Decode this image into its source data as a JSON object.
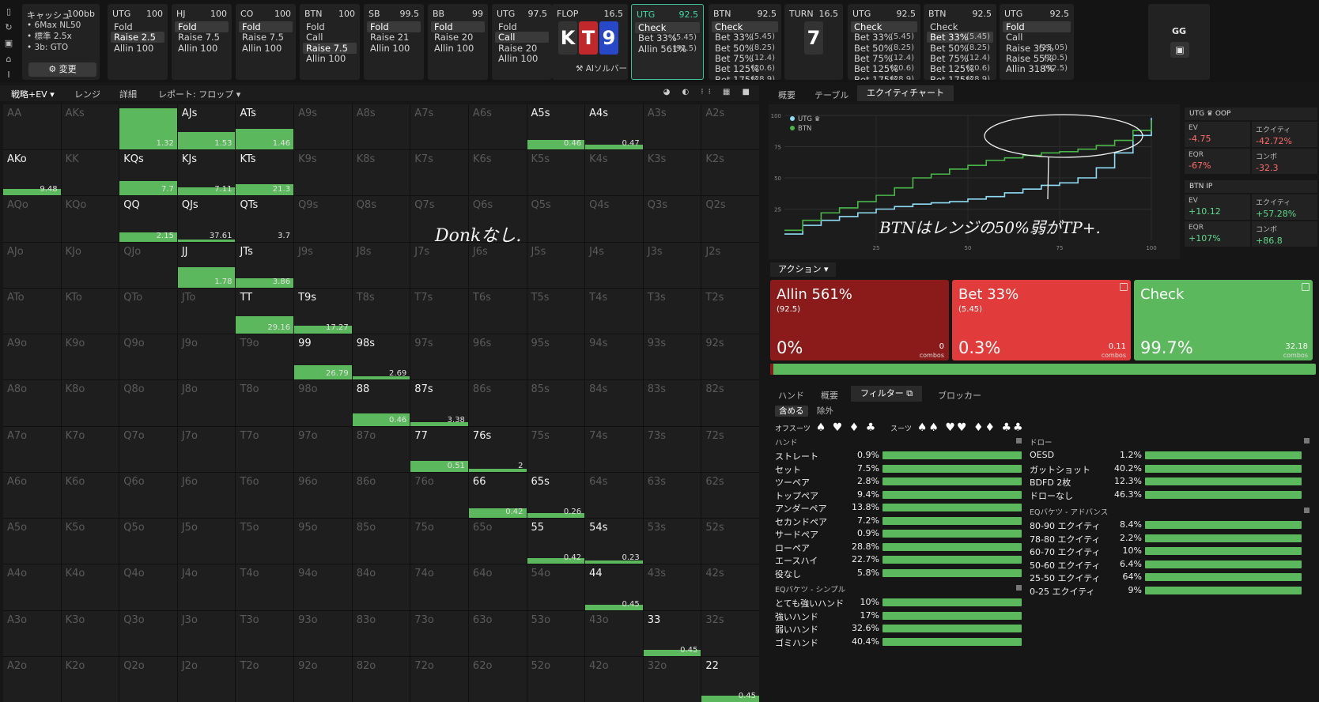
{
  "top": {
    "cash": {
      "title": "キャッシュ",
      "depth": "100bb",
      "lines": [
        "• 6Max NL50",
        "• 標準 2.5x",
        "• 3b: GTO"
      ],
      "change_label": "⚙ 変更"
    },
    "positions": [
      {
        "pos": "UTG",
        "stack": "100",
        "options": [
          {
            "label": "Fold"
          },
          {
            "label": "Raise 2.5",
            "selected": true
          },
          {
            "label": "Allin 100"
          }
        ]
      },
      {
        "pos": "HJ",
        "stack": "100",
        "options": [
          {
            "label": "Fold",
            "selected": true
          },
          {
            "label": "Raise 7.5"
          },
          {
            "label": "Allin 100"
          }
        ]
      },
      {
        "pos": "CO",
        "stack": "100",
        "options": [
          {
            "label": "Fold",
            "selected": true
          },
          {
            "label": "Raise 7.5"
          },
          {
            "label": "Allin 100"
          }
        ]
      },
      {
        "pos": "BTN",
        "stack": "100",
        "options": [
          {
            "label": "Fold"
          },
          {
            "label": "Call"
          },
          {
            "label": "Raise 7.5",
            "selected": true
          },
          {
            "label": "Allin 100"
          }
        ]
      },
      {
        "pos": "SB",
        "stack": "99.5",
        "options": [
          {
            "label": "Fold",
            "selected": true
          },
          {
            "label": "Raise 21"
          },
          {
            "label": "Allin 100"
          }
        ]
      },
      {
        "pos": "BB",
        "stack": "99",
        "options": [
          {
            "label": "Fold",
            "selected": true
          },
          {
            "label": "Raise 20"
          },
          {
            "label": "Allin 100"
          }
        ]
      },
      {
        "pos": "UTG",
        "stack": "97.5",
        "options": [
          {
            "label": "Fold"
          },
          {
            "label": "Call",
            "selected": true
          },
          {
            "label": "Raise 20"
          },
          {
            "label": "Allin 100"
          }
        ]
      }
    ],
    "flop": {
      "label": "FLOP",
      "pot": "16.5",
      "cards": [
        {
          "rank": "K",
          "color": "#333333"
        },
        {
          "rank": "T",
          "color": "#c0282c"
        },
        {
          "rank": "9",
          "color": "#2948c8"
        }
      ],
      "ai_label": "⚒ AIソルバー"
    },
    "utg_flop": {
      "pos": "UTG",
      "stack": "92.5",
      "options": [
        {
          "label": "Check",
          "selected": true
        },
        {
          "label": "Bet 33%",
          "size": "(5.45)"
        },
        {
          "label": "Allin 561%",
          "size": "(92.5)"
        }
      ]
    },
    "btn_flop": {
      "pos": "BTN",
      "stack": "92.5",
      "options": [
        {
          "label": "Check",
          "selected": true
        },
        {
          "label": "Bet 33%",
          "size": "(5.45)"
        },
        {
          "label": "Bet 50%",
          "size": "(8.25)"
        },
        {
          "label": "Bet 75%",
          "size": "(12.4)"
        },
        {
          "label": "Bet 125%",
          "size": "(20.6)"
        },
        {
          "label": "Bet 175%",
          "size": "(28.9)"
        }
      ]
    },
    "turn": {
      "label": "TURN",
      "pot": "16.5",
      "card": "7",
      "card_color": "#333333"
    },
    "utg_turn": {
      "pos": "UTG",
      "stack": "92.5",
      "options": [
        {
          "label": "Check",
          "selected": true
        },
        {
          "label": "Bet 33%",
          "size": "(5.45)"
        },
        {
          "label": "Bet 50%",
          "size": "(8.25)"
        },
        {
          "label": "Bet 75%",
          "size": "(12.4)"
        },
        {
          "label": "Bet 125%",
          "size": "(20.6)"
        },
        {
          "label": "Bet 175%",
          "size": "(28.9)"
        }
      ]
    },
    "btn_turn": {
      "pos": "BTN",
      "stack": "92.5",
      "options": [
        {
          "label": "Check"
        },
        {
          "label": "Bet 33%",
          "size": "(5.45)",
          "selected": true
        },
        {
          "label": "Bet 50%",
          "size": "(8.25)"
        },
        {
          "label": "Bet 75%",
          "size": "(12.4)"
        },
        {
          "label": "Bet 125%",
          "size": "(20.6)"
        },
        {
          "label": "Bet 175%",
          "size": "(28.9)"
        }
      ]
    },
    "utg_river": {
      "pos": "UTG",
      "stack": "92.5",
      "options": [
        {
          "label": "Fold",
          "selected": true
        },
        {
          "label": "Call"
        },
        {
          "label": "Raise 35%",
          "size": "(15.05)"
        },
        {
          "label": "Raise 55%",
          "size": "(20.5)"
        },
        {
          "label": "Allin 318%",
          "size": "(92.5)"
        }
      ]
    },
    "gg": {
      "label": "GG",
      "save_icon": "save-icon"
    }
  },
  "left": {
    "tabs": [
      "戦略+EV ▾",
      "レンジ",
      "詳細",
      "レポート: フロップ ▾"
    ],
    "view_icons": "◕ ◐ ⁝⁝ ▦ ■",
    "grid": [
      [
        {
          "h": "AA"
        },
        {
          "h": "AKs"
        },
        {
          "h": "AQs",
          "v": "1.32",
          "w": 1
        },
        {
          "h": "AJs",
          "v": "1.53",
          "w": 1
        },
        {
          "h": "ATs",
          "v": "1.46",
          "w": 1
        },
        {
          "h": "A9s"
        },
        {
          "h": "A8s"
        },
        {
          "h": "A7s"
        },
        {
          "h": "A6s"
        },
        {
          "h": "A5s",
          "v": "0.46",
          "w": 1
        },
        {
          "h": "A4s",
          "v": "0.47",
          "w": 1
        },
        {
          "h": "A3s"
        },
        {
          "h": "A2s"
        }
      ],
      [
        {
          "h": "AKo",
          "v": "9.48",
          "w": 1
        },
        {
          "h": "KK"
        },
        {
          "h": "KQs",
          "v": "7.7",
          "w": 1
        },
        {
          "h": "KJs",
          "v": "7.11",
          "w": 1
        },
        {
          "h": "KTs",
          "v": "21.3",
          "w": 1
        },
        {
          "h": "K9s"
        },
        {
          "h": "K8s"
        },
        {
          "h": "K7s"
        },
        {
          "h": "K6s"
        },
        {
          "h": "K5s"
        },
        {
          "h": "K4s"
        },
        {
          "h": "K3s"
        },
        {
          "h": "K2s"
        }
      ],
      [
        {
          "h": "AQo"
        },
        {
          "h": "KQo"
        },
        {
          "h": "QQ",
          "v": "2.15",
          "w": 1
        },
        {
          "h": "QJs",
          "v": "37.61",
          "w": 1
        },
        {
          "h": "QTs",
          "v": "3.7",
          "w": 0
        },
        {
          "h": "Q9s"
        },
        {
          "h": "Q8s"
        },
        {
          "h": "Q7s"
        },
        {
          "h": "Q6s"
        },
        {
          "h": "Q5s"
        },
        {
          "h": "Q4s"
        },
        {
          "h": "Q3s"
        },
        {
          "h": "Q2s"
        }
      ],
      [
        {
          "h": "AJo"
        },
        {
          "h": "KJo"
        },
        {
          "h": "QJo"
        },
        {
          "h": "JJ",
          "v": "1.78",
          "w": 1
        },
        {
          "h": "JTs",
          "v": "3.86",
          "w": 1
        },
        {
          "h": "J9s"
        },
        {
          "h": "J8s"
        },
        {
          "h": "J7s"
        },
        {
          "h": "J6s"
        },
        {
          "h": "J5s"
        },
        {
          "h": "J4s"
        },
        {
          "h": "J3s"
        },
        {
          "h": "J2s"
        }
      ],
      [
        {
          "h": "ATo"
        },
        {
          "h": "KTo"
        },
        {
          "h": "QTo"
        },
        {
          "h": "JTo"
        },
        {
          "h": "TT",
          "v": "29.16",
          "w": 1
        },
        {
          "h": "T9s",
          "v": "17.27",
          "w": 1
        },
        {
          "h": "T8s"
        },
        {
          "h": "T7s"
        },
        {
          "h": "T6s"
        },
        {
          "h": "T5s"
        },
        {
          "h": "T4s"
        },
        {
          "h": "T3s"
        },
        {
          "h": "T2s"
        }
      ],
      [
        {
          "h": "A9o"
        },
        {
          "h": "K9o"
        },
        {
          "h": "Q9o"
        },
        {
          "h": "J9o"
        },
        {
          "h": "T9o"
        },
        {
          "h": "99",
          "v": "26.79",
          "w": 1
        },
        {
          "h": "98s",
          "v": "2.69",
          "w": 1
        },
        {
          "h": "97s"
        },
        {
          "h": "96s"
        },
        {
          "h": "95s"
        },
        {
          "h": "94s"
        },
        {
          "h": "93s"
        },
        {
          "h": "92s"
        }
      ],
      [
        {
          "h": "A8o"
        },
        {
          "h": "K8o"
        },
        {
          "h": "Q8o"
        },
        {
          "h": "J8o"
        },
        {
          "h": "T8o"
        },
        {
          "h": "98o"
        },
        {
          "h": "88",
          "v": "0.46",
          "w": 1
        },
        {
          "h": "87s",
          "v": "3.38",
          "w": 1
        },
        {
          "h": "86s"
        },
        {
          "h": "85s"
        },
        {
          "h": "84s"
        },
        {
          "h": "83s"
        },
        {
          "h": "82s"
        }
      ],
      [
        {
          "h": "A7o"
        },
        {
          "h": "K7o"
        },
        {
          "h": "Q7o"
        },
        {
          "h": "J7o"
        },
        {
          "h": "T7o"
        },
        {
          "h": "97o"
        },
        {
          "h": "87o"
        },
        {
          "h": "77",
          "v": "0.51",
          "w": 1
        },
        {
          "h": "76s",
          "v": "2",
          "w": 1
        },
        {
          "h": "75s"
        },
        {
          "h": "74s"
        },
        {
          "h": "73s"
        },
        {
          "h": "72s"
        }
      ],
      [
        {
          "h": "A6o"
        },
        {
          "h": "K6o"
        },
        {
          "h": "Q6o"
        },
        {
          "h": "J6o"
        },
        {
          "h": "T6o"
        },
        {
          "h": "96o"
        },
        {
          "h": "86o"
        },
        {
          "h": "76o"
        },
        {
          "h": "66",
          "v": "0.42",
          "w": 1
        },
        {
          "h": "65s",
          "v": "0.26",
          "w": 1
        },
        {
          "h": "64s"
        },
        {
          "h": "63s"
        },
        {
          "h": "62s"
        }
      ],
      [
        {
          "h": "A5o"
        },
        {
          "h": "K5o"
        },
        {
          "h": "Q5o"
        },
        {
          "h": "J5o"
        },
        {
          "h": "T5o"
        },
        {
          "h": "95o"
        },
        {
          "h": "85o"
        },
        {
          "h": "75o"
        },
        {
          "h": "65o"
        },
        {
          "h": "55",
          "v": "0.42",
          "w": 1
        },
        {
          "h": "54s",
          "v": "0.23",
          "w": 1
        },
        {
          "h": "53s"
        },
        {
          "h": "52s"
        }
      ],
      [
        {
          "h": "A4o"
        },
        {
          "h": "K4o"
        },
        {
          "h": "Q4o"
        },
        {
          "h": "J4o"
        },
        {
          "h": "T4o"
        },
        {
          "h": "94o"
        },
        {
          "h": "84o"
        },
        {
          "h": "74o"
        },
        {
          "h": "64o"
        },
        {
          "h": "54o"
        },
        {
          "h": "44",
          "v": "0.45",
          "w": 1
        },
        {
          "h": "43s"
        },
        {
          "h": "42s"
        }
      ],
      [
        {
          "h": "A3o"
        },
        {
          "h": "K3o"
        },
        {
          "h": "Q3o"
        },
        {
          "h": "J3o"
        },
        {
          "h": "T3o"
        },
        {
          "h": "93o"
        },
        {
          "h": "83o"
        },
        {
          "h": "73o"
        },
        {
          "h": "63o"
        },
        {
          "h": "53o"
        },
        {
          "h": "43o"
        },
        {
          "h": "33",
          "v": "0.45",
          "w": 1
        },
        {
          "h": "32s"
        }
      ],
      [
        {
          "h": "A2o"
        },
        {
          "h": "K2o"
        },
        {
          "h": "Q2o"
        },
        {
          "h": "J2o"
        },
        {
          "h": "T2o"
        },
        {
          "h": "92o"
        },
        {
          "h": "82o"
        },
        {
          "h": "72o"
        },
        {
          "h": "62o"
        },
        {
          "h": "52o"
        },
        {
          "h": "42o"
        },
        {
          "h": "32o"
        },
        {
          "h": "22",
          "v": "0.45",
          "w": 1
        }
      ]
    ],
    "annotation": "Donkなし."
  },
  "right": {
    "tabs": [
      "概要",
      "テーブル",
      "エクイティチャート"
    ],
    "chart_data": {
      "type": "line",
      "xlim": [
        0,
        100
      ],
      "ylim": [
        0,
        100
      ],
      "xticks": [
        "25",
        "50",
        "75",
        "100"
      ],
      "yticks": [
        "100",
        "75",
        "50",
        "25"
      ],
      "series": [
        {
          "name": "UTG ♛",
          "color": "#8fdcf5",
          "x": [
            0,
            5,
            10,
            15,
            20,
            25,
            30,
            35,
            40,
            45,
            50,
            55,
            60,
            65,
            70,
            75,
            80,
            85,
            90,
            95,
            100
          ],
          "y": [
            5,
            12,
            16,
            19,
            22,
            25,
            27,
            29,
            30,
            31,
            33,
            35,
            38,
            41,
            44,
            46,
            50,
            58,
            70,
            84,
            98
          ]
        },
        {
          "name": "BTN",
          "color": "#49b649",
          "x": [
            0,
            5,
            10,
            15,
            20,
            25,
            30,
            35,
            40,
            45,
            50,
            55,
            60,
            65,
            70,
            75,
            80,
            85,
            90,
            95,
            100
          ],
          "y": [
            8,
            16,
            22,
            26,
            31,
            36,
            42,
            50,
            53,
            57,
            60,
            64,
            66,
            68,
            70,
            71,
            73,
            76,
            80,
            88,
            96
          ]
        }
      ]
    },
    "stats": {
      "utg_header": "UTG ♛ OOP",
      "utg": [
        {
          "label": "EV",
          "value": "-4.75",
          "tone": "neg"
        },
        {
          "label": "エクイティ",
          "value": "-42.72%",
          "tone": "neg"
        },
        {
          "label": "EQR",
          "value": "-67%",
          "tone": "neg"
        },
        {
          "label": "コンボ",
          "value": "-32.3",
          "tone": "neg"
        }
      ],
      "btn_header": "BTN IP",
      "btn": [
        {
          "label": "EV",
          "value": "+10.12",
          "tone": "pos"
        },
        {
          "label": "エクイティ",
          "value": "+57.28%",
          "tone": "pos"
        },
        {
          "label": "EQR",
          "value": "+107%",
          "tone": "pos"
        },
        {
          "label": "コンボ",
          "value": "+86.8",
          "tone": "pos"
        }
      ]
    },
    "chart_annotation": "BTNはレンジの50%弱がTP+.",
    "action_label": "アクション ▾",
    "actions": [
      {
        "name": "Allin 561%",
        "size": "(92.5)",
        "pct": "0%",
        "combos": "0",
        "combos_label": "combos",
        "color": "#8b1a1a"
      },
      {
        "name": "Bet 33%",
        "size": "(5.45)",
        "pct": "0.3%",
        "combos": "0.11",
        "combos_label": "combos",
        "color": "#e23b3b"
      },
      {
        "name": "Check",
        "size": "",
        "pct": "99.7%",
        "combos": "32.18",
        "combos_label": "combos",
        "color": "#5cb85c"
      }
    ],
    "freq_bar": {
      "red_fraction": 0.003
    },
    "bottom_tabs": [
      "ハンド",
      "概要",
      "フィルター ⧉",
      "ブロッカー"
    ],
    "include": "含める",
    "exclude": "除外",
    "offsuit_label": "オフスーツ",
    "offsuit_symbols": "♠ ♥ ♦ ♣",
    "suited_label": "スーツ",
    "suited_symbols": "♠♠ ♥♥ ♦♦ ♣♣",
    "hands_title": "ハンド",
    "hands": [
      {
        "label": "ストレート",
        "pct": "0.9%"
      },
      {
        "label": "セット",
        "pct": "7.5%"
      },
      {
        "label": "ツーペア",
        "pct": "2.8%"
      },
      {
        "label": "トップペア",
        "pct": "9.4%"
      },
      {
        "label": "アンダーペア",
        "pct": "13.8%"
      },
      {
        "label": "セカンドペア",
        "pct": "7.2%"
      },
      {
        "label": "サードペア",
        "pct": "0.9%"
      },
      {
        "label": "ローペア",
        "pct": "28.8%"
      },
      {
        "label": "エースハイ",
        "pct": "22.7%"
      },
      {
        "label": "役なし",
        "pct": "5.8%"
      }
    ],
    "eq_simple_title": "EQバケツ - シンプル",
    "eq_simple": [
      {
        "label": "とても強いハンド",
        "pct": "10%"
      },
      {
        "label": "強いハンド",
        "pct": "17%"
      },
      {
        "label": "弱いハンド",
        "pct": "32.6%"
      },
      {
        "label": "ゴミハンド",
        "pct": "40.4%"
      }
    ],
    "draws_title": "ドロー",
    "draws": [
      {
        "label": "OESD",
        "pct": "1.2%"
      },
      {
        "label": "ガットショット",
        "pct": "40.2%"
      },
      {
        "label": "BDFD 2枚",
        "pct": "12.3%"
      },
      {
        "label": "ドローなし",
        "pct": "46.3%"
      }
    ],
    "eq_adv_title": "EQバケツ - アドバンス",
    "eq_adv": [
      {
        "label": "80-90 エクイティ",
        "pct": "8.4%"
      },
      {
        "label": "78-80 エクイティ",
        "pct": "2.2%"
      },
      {
        "label": "60-70 エクイティ",
        "pct": "10%"
      },
      {
        "label": "50-60 エクイティ",
        "pct": "6.4%"
      },
      {
        "label": "25-50 エクイティ",
        "pct": "64%"
      },
      {
        "label": "0-25 エクイティ",
        "pct": "9%"
      }
    ]
  }
}
